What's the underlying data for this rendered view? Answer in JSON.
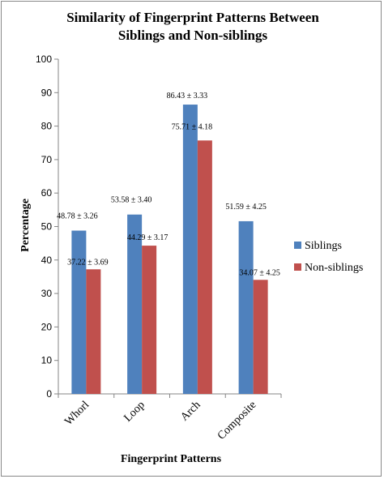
{
  "chart_data": {
    "type": "bar",
    "title_lines": [
      "Similarity of Fingerprint Patterns Between",
      "Siblings and Non-siblings"
    ],
    "xlabel": "Fingerprint Patterns",
    "ylabel": "Percentage",
    "ylim": [
      0,
      100
    ],
    "yticks": [
      "0",
      "10",
      "20",
      "30",
      "40",
      "50",
      "60",
      "70",
      "80",
      "90",
      "100"
    ],
    "grid": false,
    "legend_position": "right",
    "categories": [
      "Whorl",
      "Loop",
      "Arch",
      "Composite"
    ],
    "series": [
      {
        "name": "Siblings",
        "color": "#4F81BD",
        "values": [
          48.78,
          53.58,
          86.43,
          51.59
        ],
        "labels": [
          "48.78 ± 3.26",
          "53.58 ± 3.40",
          "86.43 ± 3.33",
          "51.59 ± 4.25"
        ]
      },
      {
        "name": "Non-siblings",
        "color": "#C0504D",
        "values": [
          37.22,
          44.29,
          75.71,
          34.07
        ],
        "labels": [
          "37.22 ± 3.69",
          "44.29 ± 3.17",
          "75.71 ± 4.18",
          "34.07 ± 4.25"
        ]
      }
    ]
  }
}
